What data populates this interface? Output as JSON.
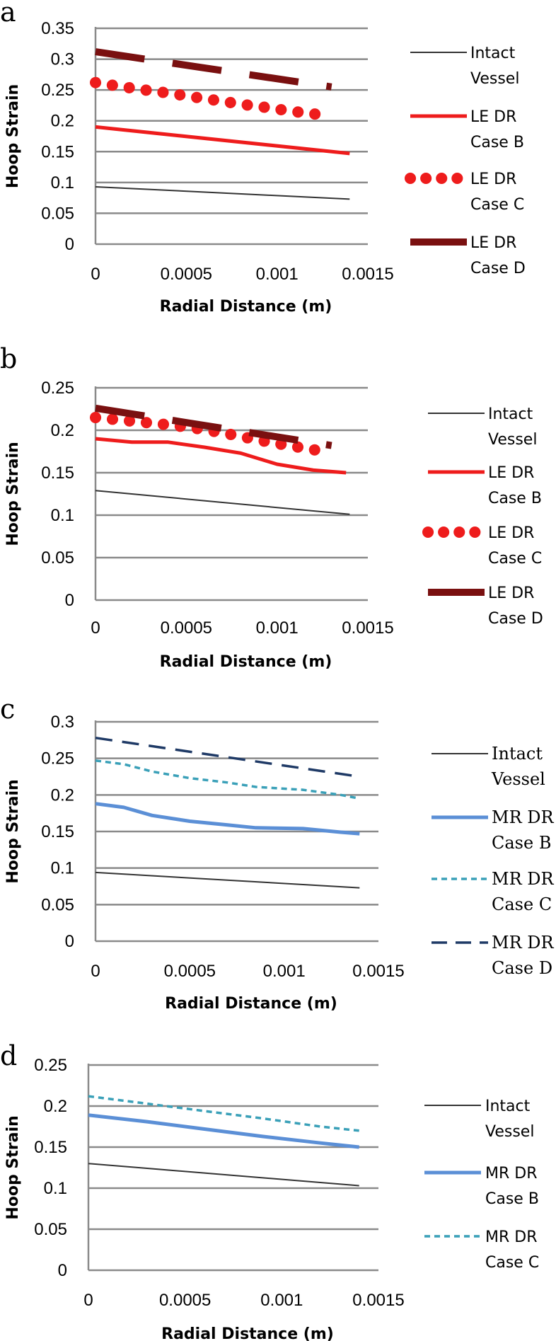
{
  "colors": {
    "intact": "#333333",
    "le_b": "#ee1c1c",
    "le_c": "#ee1c1c",
    "le_d": "#7a1010",
    "mr_b": "#5b8fd6",
    "mr_c": "#3aa0b8",
    "mr_d": "#1f3a66",
    "grid": "#8a8a8a"
  },
  "chart_data": [
    {
      "panel": "a",
      "type": "line",
      "xlabel": "Radial Distance (m)",
      "ylabel": "Hoop Strain",
      "ylim": [
        0,
        0.35
      ],
      "xlim": [
        0,
        0.0015
      ],
      "yticks": [
        "0",
        "0.05",
        "0.1",
        "0.15",
        "0.2",
        "0.25",
        "0.3",
        "0.35"
      ],
      "xticks": [
        "0",
        "0.0005",
        "0.001",
        "0.0015"
      ],
      "legend": [
        {
          "line1": "Intact",
          "line2": "Vessel"
        },
        {
          "line1": "LE DR",
          "line2": "Case B"
        },
        {
          "line1": "LE DR",
          "line2": "Case C"
        },
        {
          "line1": "LE DR",
          "line2": "Case D"
        }
      ],
      "series": [
        {
          "name": "Intact Vessel",
          "style": "thin",
          "color_key": "intact",
          "x": [
            0,
            0.0014
          ],
          "y": [
            0.093,
            0.073
          ]
        },
        {
          "name": "LE DR Case B",
          "style": "solid",
          "color_key": "le_b",
          "x": [
            0,
            0.0014
          ],
          "y": [
            0.19,
            0.147
          ]
        },
        {
          "name": "LE DR Case C",
          "style": "dots",
          "color_key": "le_c",
          "x": [
            0,
            0.00013,
            0.00027,
            0.0004,
            0.00053,
            0.00067,
            0.0008,
            0.00093,
            0.00107,
            0.0012,
            0.0013
          ],
          "y": [
            0.262,
            0.256,
            0.25,
            0.245,
            0.239,
            0.233,
            0.227,
            0.222,
            0.216,
            0.211,
            0.21
          ]
        },
        {
          "name": "LE DR Case D",
          "style": "longdash",
          "color_key": "le_d",
          "x": [
            0,
            0.0013
          ],
          "y": [
            0.312,
            0.255
          ]
        }
      ]
    },
    {
      "panel": "b",
      "type": "line",
      "xlabel": "Radial Distance (m)",
      "ylabel": "Hoop Strain",
      "ylim": [
        0,
        0.25
      ],
      "xlim": [
        0,
        0.0015
      ],
      "yticks": [
        "0",
        "0.05",
        "0.1",
        "0.15",
        "0.2",
        "0.25"
      ],
      "xticks": [
        "0",
        "0.0005",
        "0.001",
        "0.0015"
      ],
      "legend": [
        {
          "line1": "Intact",
          "line2": "Vessel"
        },
        {
          "line1": "LE DR",
          "line2": "Case B"
        },
        {
          "line1": "LE DR",
          "line2": "Case C"
        },
        {
          "line1": "LE DR",
          "line2": "Case D"
        }
      ],
      "series": [
        {
          "name": "Intact Vessel",
          "style": "thin",
          "color_key": "intact",
          "x": [
            0,
            0.0014
          ],
          "y": [
            0.129,
            0.101
          ]
        },
        {
          "name": "LE DR Case B",
          "style": "solid",
          "color_key": "le_b",
          "x": [
            0,
            0.0002,
            0.0004,
            0.0006,
            0.0008,
            0.001,
            0.0012,
            0.00138
          ],
          "y": [
            0.19,
            0.186,
            0.186,
            0.18,
            0.173,
            0.16,
            0.153,
            0.15
          ]
        },
        {
          "name": "LE DR Case C",
          "style": "dots",
          "color_key": "le_c",
          "x": [
            0,
            0.00014,
            0.00028,
            0.00042,
            0.00056,
            0.0007,
            0.00084,
            0.00098,
            0.00112,
            0.00126
          ],
          "y": [
            0.215,
            0.212,
            0.209,
            0.206,
            0.202,
            0.197,
            0.191,
            0.185,
            0.18,
            0.175
          ]
        },
        {
          "name": "LE DR Case D",
          "style": "longdash",
          "color_key": "le_d",
          "x": [
            0,
            0.0013
          ],
          "y": [
            0.226,
            0.182
          ]
        }
      ]
    },
    {
      "panel": "c",
      "type": "line",
      "xlabel": "Radial Distance (m)",
      "ylabel": "Hoop Strain",
      "ylim": [
        0,
        0.3
      ],
      "xlim": [
        0,
        0.0015
      ],
      "yticks": [
        "0",
        "0.05",
        "0.1",
        "0.15",
        "0.2",
        "0.25",
        "0.3"
      ],
      "xticks": [
        "0",
        "0.0005",
        "0.001",
        "0.0015"
      ],
      "legend": [
        {
          "line1": "Intact",
          "line2": "Vessel"
        },
        {
          "line1": "MR DR",
          "line2": "Case B"
        },
        {
          "line1": "MR DR",
          "line2": "Case C"
        },
        {
          "line1": "MR DR",
          "line2": "Case D"
        }
      ],
      "series": [
        {
          "name": "Intact Vessel",
          "style": "thin",
          "color_key": "intact",
          "x": [
            0,
            0.0014
          ],
          "y": [
            0.094,
            0.073
          ]
        },
        {
          "name": "MR DR Case B",
          "style": "solid",
          "color_key": "mr_b",
          "x": [
            0,
            0.00015,
            0.0003,
            0.0005,
            0.0007,
            0.00085,
            0.0011,
            0.0013,
            0.0014
          ],
          "y": [
            0.188,
            0.183,
            0.172,
            0.164,
            0.159,
            0.155,
            0.154,
            0.149,
            0.147
          ]
        },
        {
          "name": "MR DR Case C",
          "style": "dashed",
          "color_key": "mr_c",
          "x": [
            0,
            0.00015,
            0.0003,
            0.0005,
            0.0007,
            0.00085,
            0.0011,
            0.0013,
            0.0014
          ],
          "y": [
            0.247,
            0.242,
            0.232,
            0.223,
            0.217,
            0.211,
            0.207,
            0.2,
            0.195
          ]
        },
        {
          "name": "MR DR Case D",
          "style": "navydash",
          "color_key": "mr_d",
          "x": [
            0,
            0.0014
          ],
          "y": [
            0.278,
            0.225
          ]
        }
      ]
    },
    {
      "panel": "d",
      "type": "line",
      "xlabel": "Radial Distance (m)",
      "ylabel": "Hoop Strain",
      "ylim": [
        0,
        0.25
      ],
      "xlim": [
        0,
        0.0015
      ],
      "yticks": [
        "0",
        "0.05",
        "0.1",
        "0.15",
        "0.2",
        "0.25"
      ],
      "xticks": [
        "0",
        "0.0005",
        "0.001",
        "0.0015"
      ],
      "legend": [
        {
          "line1": "Intact",
          "line2": "Vessel"
        },
        {
          "line1": "MR DR",
          "line2": "Case B"
        },
        {
          "line1": "MR DR",
          "line2": "Case C"
        }
      ],
      "series": [
        {
          "name": "Intact Vessel",
          "style": "thin",
          "color_key": "intact",
          "x": [
            0,
            0.0014
          ],
          "y": [
            0.13,
            0.103
          ]
        },
        {
          "name": "MR DR Case B",
          "style": "solid",
          "color_key": "mr_b",
          "x": [
            0,
            0.0003,
            0.0006,
            0.0009,
            0.0012,
            0.0014
          ],
          "y": [
            0.189,
            0.181,
            0.172,
            0.163,
            0.155,
            0.15
          ]
        },
        {
          "name": "MR DR Case C",
          "style": "dashed",
          "color_key": "mr_c",
          "x": [
            0,
            0.0003,
            0.0006,
            0.0009,
            0.0012,
            0.0014
          ],
          "y": [
            0.212,
            0.203,
            0.194,
            0.185,
            0.175,
            0.17
          ]
        }
      ]
    }
  ]
}
